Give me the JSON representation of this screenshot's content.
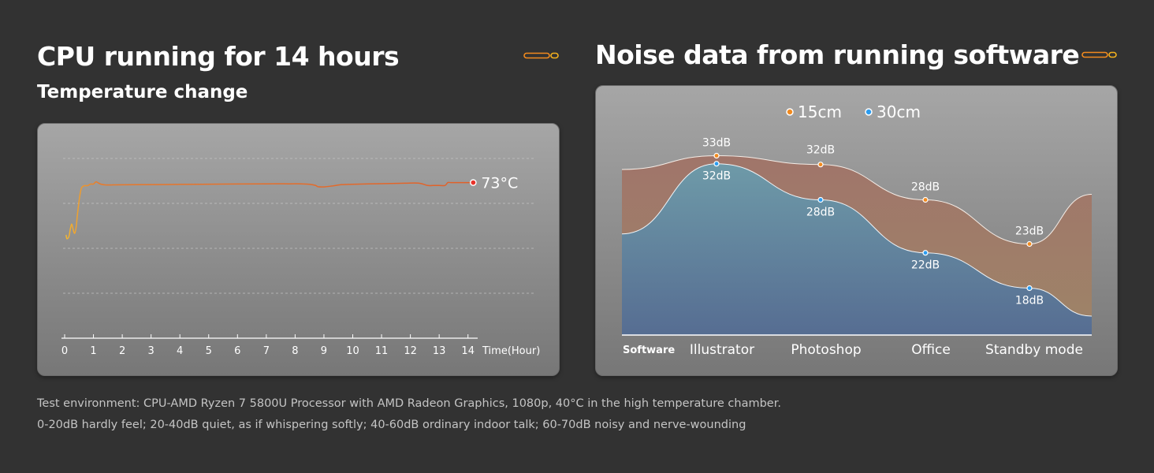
{
  "left": {
    "title": "CPU running for 14 hours",
    "subtitle": "Temperature change"
  },
  "right": {
    "title": "Noise data from running software"
  },
  "footer": {
    "line1": "Test environment: CPU-AMD Ryzen 7 5800U Processor with AMD Radeon Graphics,  1080p, 40°C in the high temperature chamber.",
    "line2": "0-20dB hardly feel; 20-40dB quiet, as if whispering softly; 40-60dB ordinary indoor talk; 60-70dB noisy and nerve-wounding"
  },
  "colors": {
    "background": "#323232",
    "accent_orange": "#f28a1e",
    "accent_blue": "#2b9cf0",
    "temp_line": "#e06a2a",
    "series_15cm_fill": "#a0776a",
    "series_30cm_fill": "#5f8fa8"
  },
  "chart_data": [
    {
      "type": "line",
      "title": "",
      "xlabel": "Time(Hour)",
      "ylabel": "",
      "x_ticks": [
        "0",
        "1",
        "2",
        "3",
        "4",
        "5",
        "6",
        "7",
        "8",
        "9",
        "10",
        "11",
        "12",
        "13",
        "14"
      ],
      "xlim": [
        0,
        14.3
      ],
      "grid": true,
      "end_label": "73°C",
      "series": [
        {
          "x": [
            0.05,
            0.08,
            0.15,
            0.2,
            0.25,
            0.3,
            0.35,
            0.4,
            0.45,
            0.5,
            0.55,
            0.6,
            0.7,
            0.8,
            0.9,
            1.0,
            1.05,
            1.1,
            1.15,
            1.25,
            1.4,
            1.7,
            2.5,
            4.0,
            5.5,
            7.0,
            7.8,
            8.2,
            8.5,
            8.7,
            8.8,
            9.0,
            9.3,
            9.6,
            10.0,
            11.0,
            11.8,
            12.3,
            12.6,
            12.8,
            13.0,
            13.2,
            13.3,
            13.4,
            13.6,
            13.9,
            14.1
          ],
          "y": [
            38,
            35.5,
            37,
            42,
            45,
            41,
            39,
            43,
            52,
            60,
            66,
            69,
            70,
            70,
            71,
            71,
            72,
            72.5,
            72,
            71,
            70.5,
            70.5,
            70.6,
            70.8,
            71,
            71.2,
            71.2,
            71.2,
            70.9,
            70.2,
            69.3,
            69.2,
            69.8,
            70.6,
            70.9,
            71.3,
            71.6,
            71.6,
            70.1,
            70.1,
            70.1,
            70.1,
            72,
            72,
            72,
            72,
            72
          ]
        }
      ]
    },
    {
      "type": "area",
      "title": "",
      "categories": [
        "Illustrator",
        "Photoshop",
        "Office",
        "Standby mode"
      ],
      "category_axis_label": "Software",
      "ylabel": "",
      "legend": "top-center",
      "series": [
        {
          "name": "15cm",
          "values": [
            33,
            32,
            28,
            23
          ],
          "labels": [
            "33dB",
            "32dB",
            "28dB",
            "23dB"
          ]
        },
        {
          "name": "30cm",
          "values": [
            32,
            28,
            22,
            18
          ],
          "labels": [
            "32dB",
            "28dB",
            "22dB",
            "18dB"
          ]
        }
      ]
    }
  ]
}
